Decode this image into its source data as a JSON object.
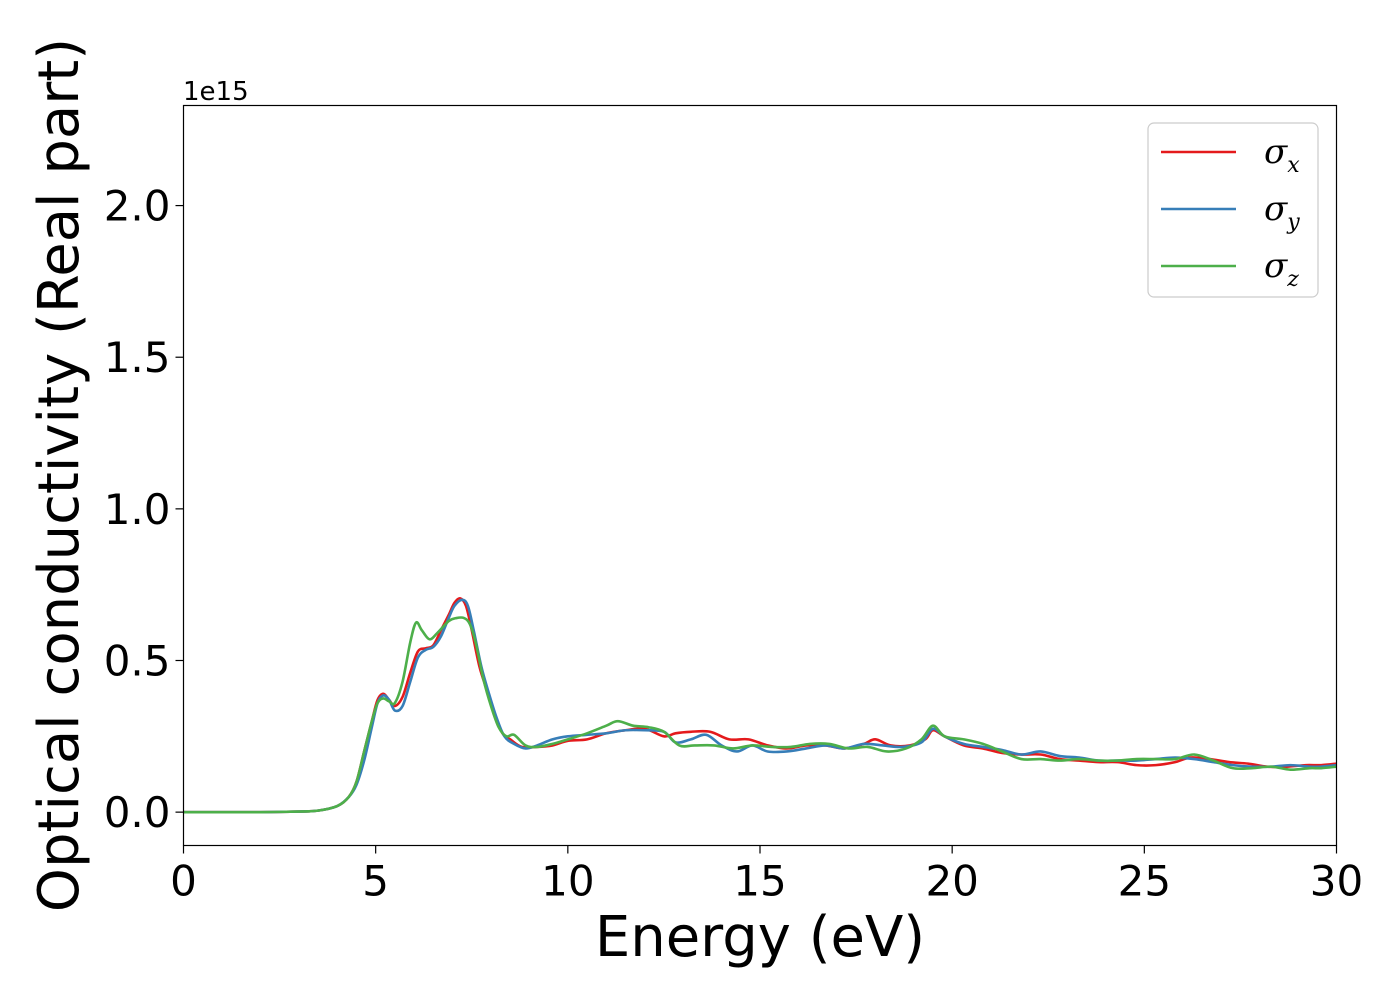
{
  "chart_data": {
    "type": "line",
    "xlabel": "Energy (eV)",
    "ylabel": "Optical conductivity (Real part)",
    "y_offset_text": "1e15",
    "y_multiplier": 1000000000000000.0,
    "xlim": [
      0,
      30
    ],
    "ylim": [
      -0.11,
      2.33
    ],
    "x_ticks": [
      0,
      5,
      10,
      15,
      20,
      25,
      30
    ],
    "x_tick_labels": [
      "0",
      "5",
      "10",
      "15",
      "20",
      "25",
      "30"
    ],
    "y_ticks": [
      0.0,
      0.5,
      1.0,
      1.5,
      2.0
    ],
    "y_tick_labels": [
      "0.0",
      "0.5",
      "1.0",
      "1.5",
      "2.0"
    ],
    "grid": false,
    "legend_position": "top-right",
    "series": [
      {
        "name_base": "σ",
        "name_sub": "x",
        "color": "#e41a1c",
        "points": [
          [
            0,
            0
          ],
          [
            1,
            0
          ],
          [
            2,
            0
          ],
          [
            3,
            0.002
          ],
          [
            3.5,
            0.005
          ],
          [
            4,
            0.02
          ],
          [
            4.3,
            0.05
          ],
          [
            4.5,
            0.1
          ],
          [
            4.7,
            0.2
          ],
          [
            4.9,
            0.3
          ],
          [
            5.05,
            0.37
          ],
          [
            5.2,
            0.39
          ],
          [
            5.35,
            0.37
          ],
          [
            5.5,
            0.35
          ],
          [
            5.7,
            0.38
          ],
          [
            5.9,
            0.46
          ],
          [
            6.1,
            0.53
          ],
          [
            6.3,
            0.54
          ],
          [
            6.5,
            0.55
          ],
          [
            6.7,
            0.6
          ],
          [
            6.9,
            0.65
          ],
          [
            7.05,
            0.69
          ],
          [
            7.2,
            0.705
          ],
          [
            7.35,
            0.68
          ],
          [
            7.5,
            0.6
          ],
          [
            7.7,
            0.48
          ],
          [
            7.9,
            0.4
          ],
          [
            8.1,
            0.32
          ],
          [
            8.3,
            0.26
          ],
          [
            8.5,
            0.24
          ],
          [
            8.8,
            0.215
          ],
          [
            9.2,
            0.215
          ],
          [
            9.6,
            0.22
          ],
          [
            10,
            0.235
          ],
          [
            10.5,
            0.24
          ],
          [
            11,
            0.26
          ],
          [
            11.5,
            0.27
          ],
          [
            12,
            0.275
          ],
          [
            12.5,
            0.25
          ],
          [
            12.8,
            0.26
          ],
          [
            13.2,
            0.265
          ],
          [
            13.7,
            0.265
          ],
          [
            14.2,
            0.24
          ],
          [
            14.7,
            0.24
          ],
          [
            15.2,
            0.22
          ],
          [
            15.7,
            0.21
          ],
          [
            16.2,
            0.22
          ],
          [
            16.7,
            0.22
          ],
          [
            17.2,
            0.21
          ],
          [
            17.7,
            0.225
          ],
          [
            18.0,
            0.24
          ],
          [
            18.4,
            0.22
          ],
          [
            18.9,
            0.22
          ],
          [
            19.3,
            0.24
          ],
          [
            19.5,
            0.27
          ],
          [
            19.8,
            0.25
          ],
          [
            20.3,
            0.22
          ],
          [
            20.8,
            0.21
          ],
          [
            21.3,
            0.195
          ],
          [
            21.8,
            0.19
          ],
          [
            22.3,
            0.19
          ],
          [
            22.8,
            0.175
          ],
          [
            23.3,
            0.17
          ],
          [
            23.8,
            0.165
          ],
          [
            24.3,
            0.165
          ],
          [
            24.8,
            0.155
          ],
          [
            25.3,
            0.155
          ],
          [
            25.8,
            0.165
          ],
          [
            26.2,
            0.18
          ],
          [
            26.7,
            0.175
          ],
          [
            27.2,
            0.165
          ],
          [
            27.7,
            0.16
          ],
          [
            28.2,
            0.15
          ],
          [
            28.7,
            0.15
          ],
          [
            29.2,
            0.155
          ],
          [
            29.6,
            0.155
          ],
          [
            30,
            0.16
          ]
        ]
      },
      {
        "name_base": "σ",
        "name_sub": "y",
        "color": "#377eb8",
        "points": [
          [
            0,
            0
          ],
          [
            1,
            0
          ],
          [
            2,
            0
          ],
          [
            3,
            0.002
          ],
          [
            3.5,
            0.005
          ],
          [
            4,
            0.02
          ],
          [
            4.3,
            0.05
          ],
          [
            4.5,
            0.09
          ],
          [
            4.7,
            0.17
          ],
          [
            4.9,
            0.28
          ],
          [
            5.05,
            0.36
          ],
          [
            5.2,
            0.385
          ],
          [
            5.35,
            0.37
          ],
          [
            5.5,
            0.335
          ],
          [
            5.7,
            0.35
          ],
          [
            5.9,
            0.43
          ],
          [
            6.1,
            0.51
          ],
          [
            6.3,
            0.535
          ],
          [
            6.5,
            0.545
          ],
          [
            6.7,
            0.58
          ],
          [
            6.9,
            0.64
          ],
          [
            7.05,
            0.68
          ],
          [
            7.25,
            0.7
          ],
          [
            7.4,
            0.68
          ],
          [
            7.55,
            0.6
          ],
          [
            7.75,
            0.48
          ],
          [
            7.95,
            0.39
          ],
          [
            8.15,
            0.31
          ],
          [
            8.35,
            0.25
          ],
          [
            8.6,
            0.225
          ],
          [
            8.9,
            0.21
          ],
          [
            9.2,
            0.22
          ],
          [
            9.6,
            0.24
          ],
          [
            10,
            0.25
          ],
          [
            10.5,
            0.255
          ],
          [
            11,
            0.26
          ],
          [
            11.5,
            0.27
          ],
          [
            12,
            0.27
          ],
          [
            12.5,
            0.265
          ],
          [
            12.8,
            0.23
          ],
          [
            13.2,
            0.24
          ],
          [
            13.6,
            0.255
          ],
          [
            14.0,
            0.22
          ],
          [
            14.4,
            0.2
          ],
          [
            14.8,
            0.22
          ],
          [
            15.2,
            0.2
          ],
          [
            15.7,
            0.2
          ],
          [
            16.2,
            0.21
          ],
          [
            16.7,
            0.22
          ],
          [
            17.2,
            0.21
          ],
          [
            17.7,
            0.225
          ],
          [
            18.2,
            0.22
          ],
          [
            18.7,
            0.215
          ],
          [
            19.2,
            0.23
          ],
          [
            19.5,
            0.275
          ],
          [
            19.8,
            0.25
          ],
          [
            20.3,
            0.225
          ],
          [
            20.8,
            0.215
          ],
          [
            21.3,
            0.205
          ],
          [
            21.8,
            0.19
          ],
          [
            22.3,
            0.2
          ],
          [
            22.8,
            0.185
          ],
          [
            23.3,
            0.18
          ],
          [
            23.8,
            0.17
          ],
          [
            24.3,
            0.17
          ],
          [
            24.8,
            0.17
          ],
          [
            25.3,
            0.175
          ],
          [
            25.8,
            0.18
          ],
          [
            26.3,
            0.175
          ],
          [
            26.8,
            0.165
          ],
          [
            27.3,
            0.155
          ],
          [
            27.8,
            0.15
          ],
          [
            28.3,
            0.15
          ],
          [
            28.8,
            0.155
          ],
          [
            29.3,
            0.15
          ],
          [
            29.6,
            0.15
          ],
          [
            30,
            0.155
          ]
        ]
      },
      {
        "name_base": "σ",
        "name_sub": "z",
        "color": "#4daf4a",
        "points": [
          [
            0,
            0
          ],
          [
            1,
            0
          ],
          [
            2,
            0
          ],
          [
            3,
            0.002
          ],
          [
            3.5,
            0.005
          ],
          [
            4,
            0.02
          ],
          [
            4.3,
            0.05
          ],
          [
            4.5,
            0.1
          ],
          [
            4.7,
            0.2
          ],
          [
            4.9,
            0.3
          ],
          [
            5.05,
            0.36
          ],
          [
            5.2,
            0.375
          ],
          [
            5.35,
            0.365
          ],
          [
            5.5,
            0.36
          ],
          [
            5.7,
            0.43
          ],
          [
            5.9,
            0.56
          ],
          [
            6.05,
            0.625
          ],
          [
            6.2,
            0.6
          ],
          [
            6.4,
            0.57
          ],
          [
            6.6,
            0.59
          ],
          [
            6.9,
            0.63
          ],
          [
            7.1,
            0.64
          ],
          [
            7.3,
            0.64
          ],
          [
            7.45,
            0.62
          ],
          [
            7.6,
            0.56
          ],
          [
            7.8,
            0.44
          ],
          [
            8.0,
            0.35
          ],
          [
            8.2,
            0.28
          ],
          [
            8.4,
            0.25
          ],
          [
            8.6,
            0.255
          ],
          [
            8.9,
            0.22
          ],
          [
            9.2,
            0.215
          ],
          [
            9.6,
            0.225
          ],
          [
            10,
            0.24
          ],
          [
            10.5,
            0.26
          ],
          [
            11,
            0.285
          ],
          [
            11.3,
            0.3
          ],
          [
            11.7,
            0.285
          ],
          [
            12.1,
            0.28
          ],
          [
            12.5,
            0.265
          ],
          [
            12.9,
            0.22
          ],
          [
            13.3,
            0.22
          ],
          [
            13.8,
            0.22
          ],
          [
            14.3,
            0.21
          ],
          [
            14.8,
            0.22
          ],
          [
            15.3,
            0.215
          ],
          [
            15.8,
            0.215
          ],
          [
            16.3,
            0.225
          ],
          [
            16.8,
            0.225
          ],
          [
            17.3,
            0.21
          ],
          [
            17.8,
            0.215
          ],
          [
            18.3,
            0.2
          ],
          [
            18.8,
            0.21
          ],
          [
            19.2,
            0.24
          ],
          [
            19.5,
            0.285
          ],
          [
            19.8,
            0.25
          ],
          [
            20.3,
            0.24
          ],
          [
            20.8,
            0.225
          ],
          [
            21.3,
            0.2
          ],
          [
            21.8,
            0.175
          ],
          [
            22.3,
            0.175
          ],
          [
            22.8,
            0.17
          ],
          [
            23.3,
            0.175
          ],
          [
            23.8,
            0.17
          ],
          [
            24.3,
            0.17
          ],
          [
            24.8,
            0.175
          ],
          [
            25.3,
            0.175
          ],
          [
            25.8,
            0.175
          ],
          [
            26.3,
            0.19
          ],
          [
            26.8,
            0.17
          ],
          [
            27.3,
            0.145
          ],
          [
            27.8,
            0.145
          ],
          [
            28.3,
            0.15
          ],
          [
            28.8,
            0.14
          ],
          [
            29.3,
            0.145
          ],
          [
            29.6,
            0.145
          ],
          [
            30,
            0.15
          ]
        ]
      }
    ]
  }
}
